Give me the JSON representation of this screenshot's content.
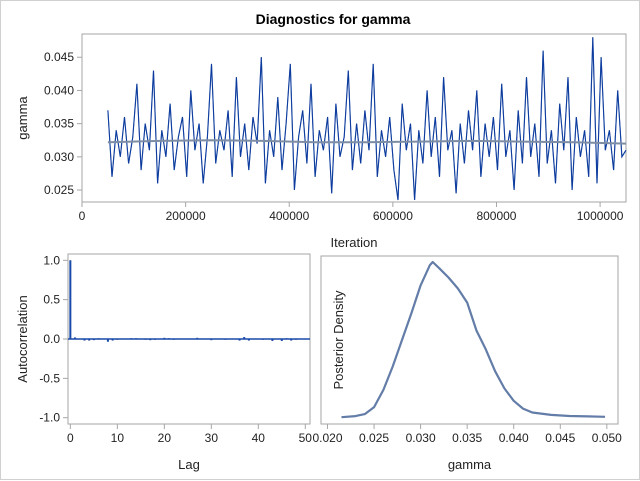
{
  "title": "Diagnostics for gamma",
  "colors": {
    "trace": "#0b3a9c",
    "trace_light": "#6f8fcc",
    "mean_line": "#7d8da3",
    "acf": "#1a4aa8",
    "density": "#637da8",
    "frame": "#a6a6a6"
  },
  "chart_data": [
    {
      "type": "line",
      "name": "trace",
      "xlabel": "Iteration",
      "ylabel": "gamma",
      "xlim": [
        0,
        1050000
      ],
      "ylim": [
        0.0232,
        0.0485
      ],
      "xticks": [
        "0",
        "200000",
        "400000",
        "600000",
        "800000",
        "1000000"
      ],
      "xtick_values": [
        0,
        200000,
        400000,
        600000,
        800000,
        1000000
      ],
      "yticks": [
        "0.025",
        "0.030",
        "0.035",
        "0.040",
        "0.045"
      ],
      "ytick_values": [
        0.025,
        0.03,
        0.035,
        0.04,
        0.045
      ],
      "x_start": 50000,
      "x_end": 1050000,
      "values": [
        0.037,
        0.027,
        0.034,
        0.03,
        0.036,
        0.029,
        0.033,
        0.041,
        0.028,
        0.035,
        0.031,
        0.043,
        0.026,
        0.034,
        0.03,
        0.038,
        0.028,
        0.033,
        0.036,
        0.027,
        0.04,
        0.031,
        0.035,
        0.026,
        0.033,
        0.044,
        0.029,
        0.034,
        0.031,
        0.037,
        0.027,
        0.042,
        0.03,
        0.035,
        0.028,
        0.036,
        0.032,
        0.045,
        0.026,
        0.034,
        0.03,
        0.039,
        0.028,
        0.035,
        0.044,
        0.025,
        0.033,
        0.037,
        0.029,
        0.041,
        0.027,
        0.034,
        0.031,
        0.036,
        0.0245,
        0.038,
        0.03,
        0.033,
        0.043,
        0.028,
        0.035,
        0.029,
        0.037,
        0.031,
        0.044,
        0.027,
        0.034,
        0.03,
        0.036,
        0.028,
        0.0235,
        0.038,
        0.031,
        0.035,
        0.0235,
        0.034,
        0.029,
        0.04,
        0.03,
        0.036,
        0.027,
        0.042,
        0.031,
        0.034,
        0.0245,
        0.035,
        0.029,
        0.037,
        0.031,
        0.04,
        0.027,
        0.035,
        0.03,
        0.036,
        0.028,
        0.041,
        0.03,
        0.034,
        0.025,
        0.037,
        0.029,
        0.042,
        0.03,
        0.035,
        0.027,
        0.046,
        0.029,
        0.034,
        0.026,
        0.038,
        0.031,
        0.042,
        0.025,
        0.036,
        0.03,
        0.034,
        0.027,
        0.048,
        0.026,
        0.045,
        0.031,
        0.034,
        0.028,
        0.04,
        0.03,
        0.031
      ],
      "mean_line": [
        0.0322,
        0.0324,
        0.0325,
        0.0324,
        0.0322,
        0.0322,
        0.0323,
        0.0324,
        0.0323,
        0.0322,
        0.032
      ]
    },
    {
      "type": "bar",
      "name": "autocorrelation",
      "xlabel": "Lag",
      "ylabel": "Autocorrelation",
      "xlim": [
        -0.5,
        51
      ],
      "ylim": [
        -1.08,
        1.08
      ],
      "xticks": [
        "0",
        "10",
        "20",
        "30",
        "40",
        "50"
      ],
      "xtick_values": [
        0,
        10,
        20,
        30,
        40,
        50
      ],
      "yticks": [
        "-1.0",
        "-0.5",
        "0.0",
        "0.5",
        "1.0"
      ],
      "ytick_values": [
        -1.0,
        -0.5,
        0.0,
        0.5,
        1.0
      ],
      "values": [
        1.0,
        0.02,
        -0.005,
        -0.02,
        -0.02,
        -0.015,
        0.01,
        0.005,
        -0.035,
        -0.02,
        -0.01,
        0.005,
        0.005,
        0.01,
        0.01,
        0.005,
        -0.01,
        -0.015,
        -0.01,
        0.005,
        0.015,
        0.01,
        -0.01,
        0.005,
        0.005,
        0.005,
        0.005,
        0.015,
        0.005,
        0.005,
        -0.015,
        0.005,
        0.005,
        -0.01,
        0.005,
        0.005,
        -0.02,
        0.025,
        -0.02,
        0.005,
        0.005,
        -0.01,
        0.005,
        -0.025,
        0.005,
        -0.025,
        0.01,
        -0.02,
        -0.01,
        0.005,
        0.005
      ]
    },
    {
      "type": "line",
      "name": "density",
      "xlabel": "gamma",
      "ylabel": "Posterior Density",
      "xlim": [
        0.0193,
        0.0512
      ],
      "xticks": [
        "0.020",
        "0.025",
        "0.030",
        "0.035",
        "0.040",
        "0.045",
        "0.050"
      ],
      "xtick_values": [
        0.02,
        0.025,
        0.03,
        0.035,
        0.04,
        0.045,
        0.05
      ],
      "x": [
        0.0215,
        0.023,
        0.024,
        0.025,
        0.026,
        0.027,
        0.028,
        0.029,
        0.03,
        0.031,
        0.0313,
        0.032,
        0.033,
        0.034,
        0.035,
        0.036,
        0.037,
        0.038,
        0.039,
        0.04,
        0.041,
        0.042,
        0.044,
        0.046,
        0.048,
        0.0498
      ],
      "y": [
        0.005,
        0.012,
        0.025,
        0.07,
        0.18,
        0.33,
        0.5,
        0.67,
        0.85,
        0.98,
        1.0,
        0.96,
        0.9,
        0.83,
        0.74,
        0.56,
        0.44,
        0.3,
        0.19,
        0.11,
        0.06,
        0.035,
        0.02,
        0.013,
        0.01,
        0.008
      ]
    }
  ]
}
